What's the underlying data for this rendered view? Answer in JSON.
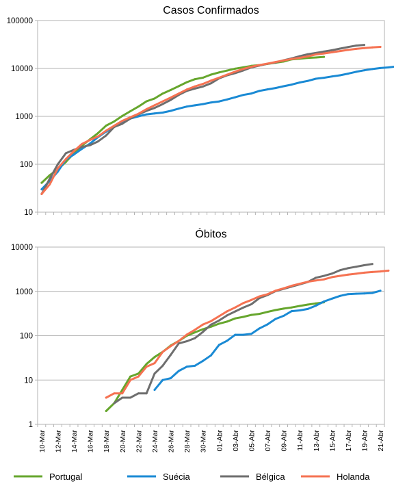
{
  "chart_data": [
    {
      "type": "line",
      "title": "Casos Confirmados",
      "y_scale": "log",
      "ylim": [
        10,
        100000
      ],
      "y_ticks": [
        "10",
        "100",
        "1000",
        "10000",
        "100000"
      ],
      "grid": "horizontal",
      "x_day_count": 43,
      "series": [
        {
          "name": "Portugal",
          "color": "#66a62d",
          "start": 0,
          "values": [
            41,
            59,
            78,
            112,
            169,
            245,
            331,
            448,
            642,
            785,
            1020,
            1280,
            1600,
            2060,
            2362,
            2995,
            3544,
            4268,
            5170,
            5962,
            6408,
            7443,
            8251,
            9034,
            9886,
            10524,
            11278,
            11730,
            12442,
            13141,
            13956,
            15472,
            15987,
            16585,
            16934,
            17448
          ]
        },
        {
          "name": "Suécia",
          "color": "#1a8ad4",
          "start": 0,
          "values": [
            30,
            45,
            70,
            125,
            160,
            210,
            270,
            370,
            480,
            600,
            770,
            900,
            1000,
            1100,
            1150,
            1200,
            1300,
            1450,
            1600,
            1700,
            1800,
            1950,
            2050,
            2250,
            2500,
            2800,
            3000,
            3400,
            3650,
            3900,
            4250,
            4600,
            5100,
            5500,
            6100,
            6400,
            6800,
            7200,
            7800,
            8500,
            9150,
            9700,
            10200,
            10500,
            11000
          ]
        },
        {
          "name": "Bélgica",
          "color": "#6e6e6e",
          "start": 0,
          "values": [
            24,
            50,
            100,
            170,
            200,
            230,
            250,
            300,
            400,
            600,
            700,
            900,
            1100,
            1300,
            1500,
            1800,
            2200,
            2800,
            3400,
            3800,
            4200,
            4900,
            6200,
            7200,
            8000,
            9100,
            10500,
            11500,
            12500,
            13300,
            14800,
            16200,
            18000,
            19800,
            21000,
            22500,
            24000,
            26000,
            28000,
            30000,
            31000
          ]
        },
        {
          "name": "Holanda",
          "color": "#f57252",
          "start": 0,
          "values": [
            24,
            38,
            82,
            128,
            188,
            265,
            321,
            382,
            503,
            640,
            804,
            959,
            1135,
            1413,
            1705,
            2051,
            2460,
            2994,
            3631,
            4204,
            4749,
            5560,
            6412,
            7431,
            8603,
            9762,
            10866,
            11750,
            12595,
            13614,
            14697,
            15723,
            16627,
            17851,
            19580,
            20549,
            21762,
            23097,
            24413,
            25587,
            26551,
            27419,
            28153
          ]
        }
      ]
    },
    {
      "type": "line",
      "title": "Óbitos",
      "y_scale": "log",
      "ylim": [
        1,
        10000
      ],
      "y_ticks": [
        "1",
        "10",
        "100",
        "1000",
        "10000"
      ],
      "grid": "horizontal",
      "x_day_count": 43,
      "x_ticks": [
        "10-Mar",
        "12-Mar",
        "14-Mar",
        "16-Mar",
        "18-Mar",
        "20-Mar",
        "22-Mar",
        "24-Mar",
        "26-Mar",
        "28-Mar",
        "30-Mar",
        "01-Abr",
        "03-Abr",
        "05-Abr",
        "07-Abr",
        "09-Abr",
        "11-Abr",
        "13-Abr",
        "15-Abr",
        "17-Abr",
        "19-Abr",
        "21-Abr"
      ],
      "series": [
        {
          "name": "Portugal",
          "color": "#66a62d",
          "start": 8,
          "values": [
            2,
            3,
            6,
            12,
            14,
            23,
            33,
            43,
            60,
            76,
            100,
            119,
            140,
            160,
            187,
            209,
            246,
            266,
            295,
            311,
            345,
            380,
            409,
            435,
            470,
            504,
            535,
            567
          ]
        },
        {
          "name": "Suécia",
          "color": "#1a8ad4",
          "start": 14,
          "values": [
            6,
            10,
            11,
            16,
            20,
            21,
            27,
            36,
            62,
            77,
            105,
            105,
            110,
            146,
            180,
            239,
            280,
            358,
            373,
            401,
            477,
            591,
            687,
            793,
            870,
            887,
            899,
            919,
            1033
          ]
        },
        {
          "name": "Bélgica",
          "color": "#6e6e6e",
          "start": 9,
          "values": [
            3,
            4,
            4,
            5,
            5,
            14,
            21,
            37,
            67,
            75,
            88,
            122,
            178,
            220,
            289,
            353,
            431,
            513,
            705,
            828,
            1011,
            1143,
            1283,
            1447,
            1632,
            2035,
            2240,
            2523,
            3019,
            3346,
            3600,
            3903,
            4157
          ]
        },
        {
          "name": "Holanda",
          "color": "#f57252",
          "start": 8,
          "values": [
            4,
            5,
            5,
            10,
            12,
            20,
            24,
            43,
            58,
            76,
            106,
            136,
            179,
            213,
            276,
            356,
            434,
            546,
            639,
            771,
            864,
            1039,
            1173,
            1339,
            1487,
            1651,
            1766,
            1867,
            2101,
            2248,
            2396,
            2511,
            2643,
            2737,
            2823,
            2945
          ]
        }
      ]
    }
  ],
  "legend": [
    {
      "label": "Portugal",
      "color": "#66a62d"
    },
    {
      "label": "Suécia",
      "color": "#1a8ad4"
    },
    {
      "label": "Bélgica",
      "color": "#6e6e6e"
    },
    {
      "label": "Holanda",
      "color": "#f57252"
    }
  ]
}
